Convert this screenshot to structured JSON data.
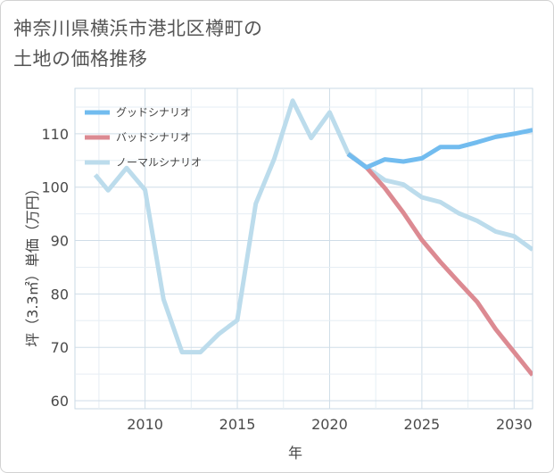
{
  "title_lines": [
    "神奈川県横浜市港北区樽町の",
    "土地の価格推移"
  ],
  "chart_data": {
    "type": "line",
    "xlabel": "年",
    "ylabel": "坪（3.3㎡）単価（万円）",
    "xlim": [
      2006.2,
      2031
    ],
    "ylim": [
      58.5,
      118.5
    ],
    "xticks": [
      2010,
      2015,
      2020,
      2025,
      2030
    ],
    "yticks": [
      60,
      70,
      80,
      90,
      100,
      110
    ],
    "grid": true,
    "legend_position": "top-left",
    "series": [
      {
        "name": "グッドシナリオ",
        "color": "#72bcef",
        "x": [
          2021,
          2022,
          2023,
          2024,
          2025,
          2026,
          2027,
          2028,
          2029,
          2030,
          2031
        ],
        "y": [
          106.2,
          103.7,
          105.2,
          104.8,
          105.4,
          107.5,
          107.5,
          108.4,
          109.4,
          110.0,
          110.7
        ]
      },
      {
        "name": "バッドシナリオ",
        "color": "#dc8a92",
        "x": [
          2021,
          2022,
          2023,
          2024,
          2025,
          2026,
          2027,
          2028,
          2029,
          2030,
          2031
        ],
        "y": [
          106.2,
          103.7,
          99.8,
          95.2,
          90.1,
          86.0,
          82.2,
          78.5,
          73.4,
          69.1,
          64.8
        ]
      },
      {
        "name": "ノーマルシナリオ",
        "color": "#bcdcec",
        "x": [
          2007.3,
          2008,
          2009,
          2010,
          2011,
          2012,
          2013,
          2014,
          2015,
          2016,
          2017,
          2018,
          2019,
          2020,
          2021,
          2022,
          2023,
          2024,
          2025,
          2026,
          2027,
          2028,
          2029,
          2030,
          2031
        ],
        "y": [
          102.3,
          99.4,
          103.6,
          99.5,
          79.0,
          69.1,
          69.1,
          72.5,
          75.1,
          96.9,
          105.3,
          116.2,
          109.2,
          114.0,
          106.4,
          103.7,
          101.3,
          100.5,
          98.1,
          97.2,
          95.1,
          93.7,
          91.7,
          90.8,
          88.3
        ]
      }
    ]
  }
}
